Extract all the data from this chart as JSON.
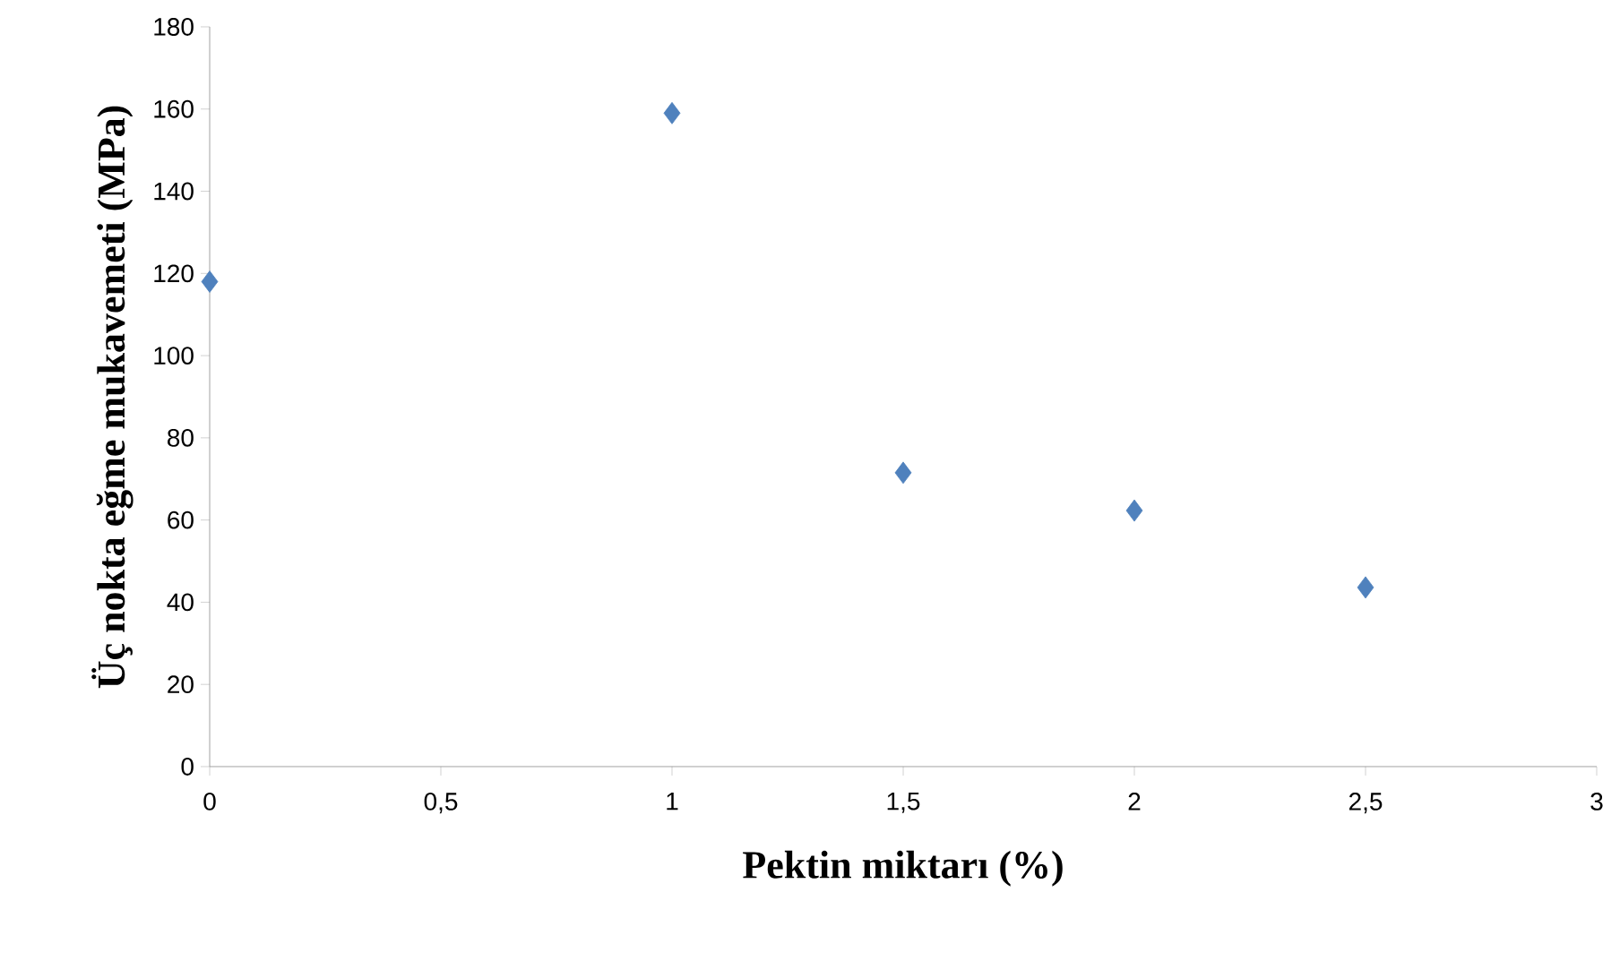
{
  "chart_data": {
    "type": "scatter",
    "xlabel": "Pektin miktarı (%)",
    "ylabel": "Üç nokta eğme mukavemeti (MPa)",
    "x": [
      0,
      1,
      1.5,
      2,
      2.5
    ],
    "series": [
      {
        "color": "#4f81bd",
        "values": [
          118,
          159,
          71.5,
          62.3,
          43.6
        ]
      }
    ],
    "marker": "diamond",
    "grid": false,
    "xlim": [
      0,
      3
    ],
    "xticks": [
      0,
      {
        "value": 0.5,
        "label": "0,5"
      },
      1,
      {
        "value": 1.5,
        "label": "1,5"
      },
      2,
      {
        "value": 2.5,
        "label": "2,5"
      },
      3
    ],
    "ylim": [
      0,
      180
    ],
    "yticks": [
      0,
      20,
      40,
      60,
      80,
      100,
      120,
      140,
      160,
      180
    ]
  }
}
